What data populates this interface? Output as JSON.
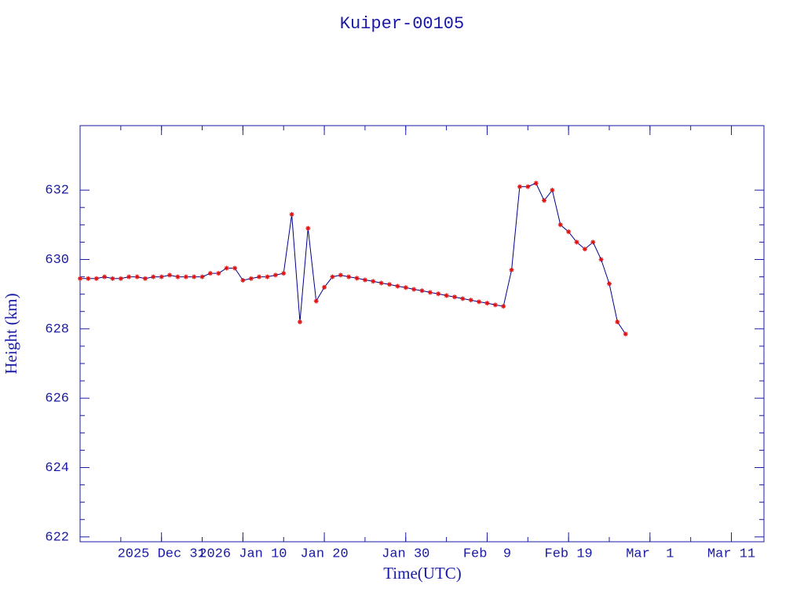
{
  "chart_data": {
    "type": "line",
    "title": "Kuiper-00105",
    "xlabel": "Time(UTC)",
    "ylabel": "Height (km)",
    "x": [
      "2025-12-21",
      "2025-12-22",
      "2025-12-23",
      "2025-12-24",
      "2025-12-25",
      "2025-12-26",
      "2025-12-27",
      "2025-12-28",
      "2025-12-29",
      "2025-12-30",
      "2025-12-31",
      "2026-01-01",
      "2026-01-02",
      "2026-01-03",
      "2026-01-04",
      "2026-01-05",
      "2026-01-06",
      "2026-01-07",
      "2026-01-08",
      "2026-01-09",
      "2026-01-10",
      "2026-01-11",
      "2026-01-12",
      "2026-01-13",
      "2026-01-14",
      "2026-01-15",
      "2026-01-16",
      "2026-01-17",
      "2026-01-18",
      "2026-01-19",
      "2026-01-20",
      "2026-01-21",
      "2026-01-22",
      "2026-01-23",
      "2026-01-24",
      "2026-01-25",
      "2026-01-26",
      "2026-01-27",
      "2026-01-28",
      "2026-01-29",
      "2026-01-30",
      "2026-01-31",
      "2026-02-01",
      "2026-02-02",
      "2026-02-03",
      "2026-02-04",
      "2026-02-05",
      "2026-02-06",
      "2026-02-07",
      "2026-02-08",
      "2026-02-09",
      "2026-02-10",
      "2026-02-11",
      "2026-02-12",
      "2026-02-13",
      "2026-02-14",
      "2026-02-15",
      "2026-02-16",
      "2026-02-17",
      "2026-02-18",
      "2026-02-19",
      "2026-02-20",
      "2026-02-21",
      "2026-02-22",
      "2026-02-23",
      "2026-02-24",
      "2026-02-25",
      "2026-02-26"
    ],
    "series": [
      {
        "name": "Height",
        "color": "#00008b",
        "marker_color": "#e01010",
        "values": [
          629.45,
          629.45,
          629.45,
          629.5,
          629.45,
          629.45,
          629.5,
          629.5,
          629.45,
          629.5,
          629.5,
          629.55,
          629.5,
          629.5,
          629.5,
          629.5,
          629.6,
          629.6,
          629.75,
          629.75,
          629.4,
          629.45,
          629.5,
          629.5,
          629.55,
          629.6,
          631.3,
          628.2,
          630.9,
          628.8,
          629.2,
          629.5,
          629.55,
          629.5,
          629.46,
          629.41,
          629.37,
          629.32,
          629.28,
          629.23,
          629.19,
          629.14,
          629.1,
          629.05,
          629.01,
          628.96,
          628.92,
          628.87,
          628.83,
          628.78,
          628.74,
          628.69,
          628.65,
          629.7,
          632.1,
          632.1,
          632.2,
          631.7,
          632.0,
          631.0,
          630.8,
          630.5,
          630.3,
          630.5,
          630.0,
          629.3,
          628.2,
          627.85
        ]
      }
    ],
    "xlim": [
      "2025-12-21",
      "2026-03-15"
    ],
    "xticks": [
      {
        "value": "2025-12-31",
        "label": "2025 Dec 31"
      },
      {
        "value": "2026-01-10",
        "label": "2026 Jan 10"
      },
      {
        "value": "2026-01-20",
        "label": "Jan 20"
      },
      {
        "value": "2026-01-30",
        "label": "Jan 30"
      },
      {
        "value": "2026-02-09",
        "label": "Feb  9"
      },
      {
        "value": "2026-02-19",
        "label": "Feb 19"
      },
      {
        "value": "2026-03-01",
        "label": "Mar  1"
      },
      {
        "value": "2026-03-11",
        "label": "Mar 11"
      }
    ],
    "ylim": [
      621.86,
      633.86
    ],
    "yticks": [
      622,
      624,
      626,
      628,
      630,
      632
    ]
  }
}
